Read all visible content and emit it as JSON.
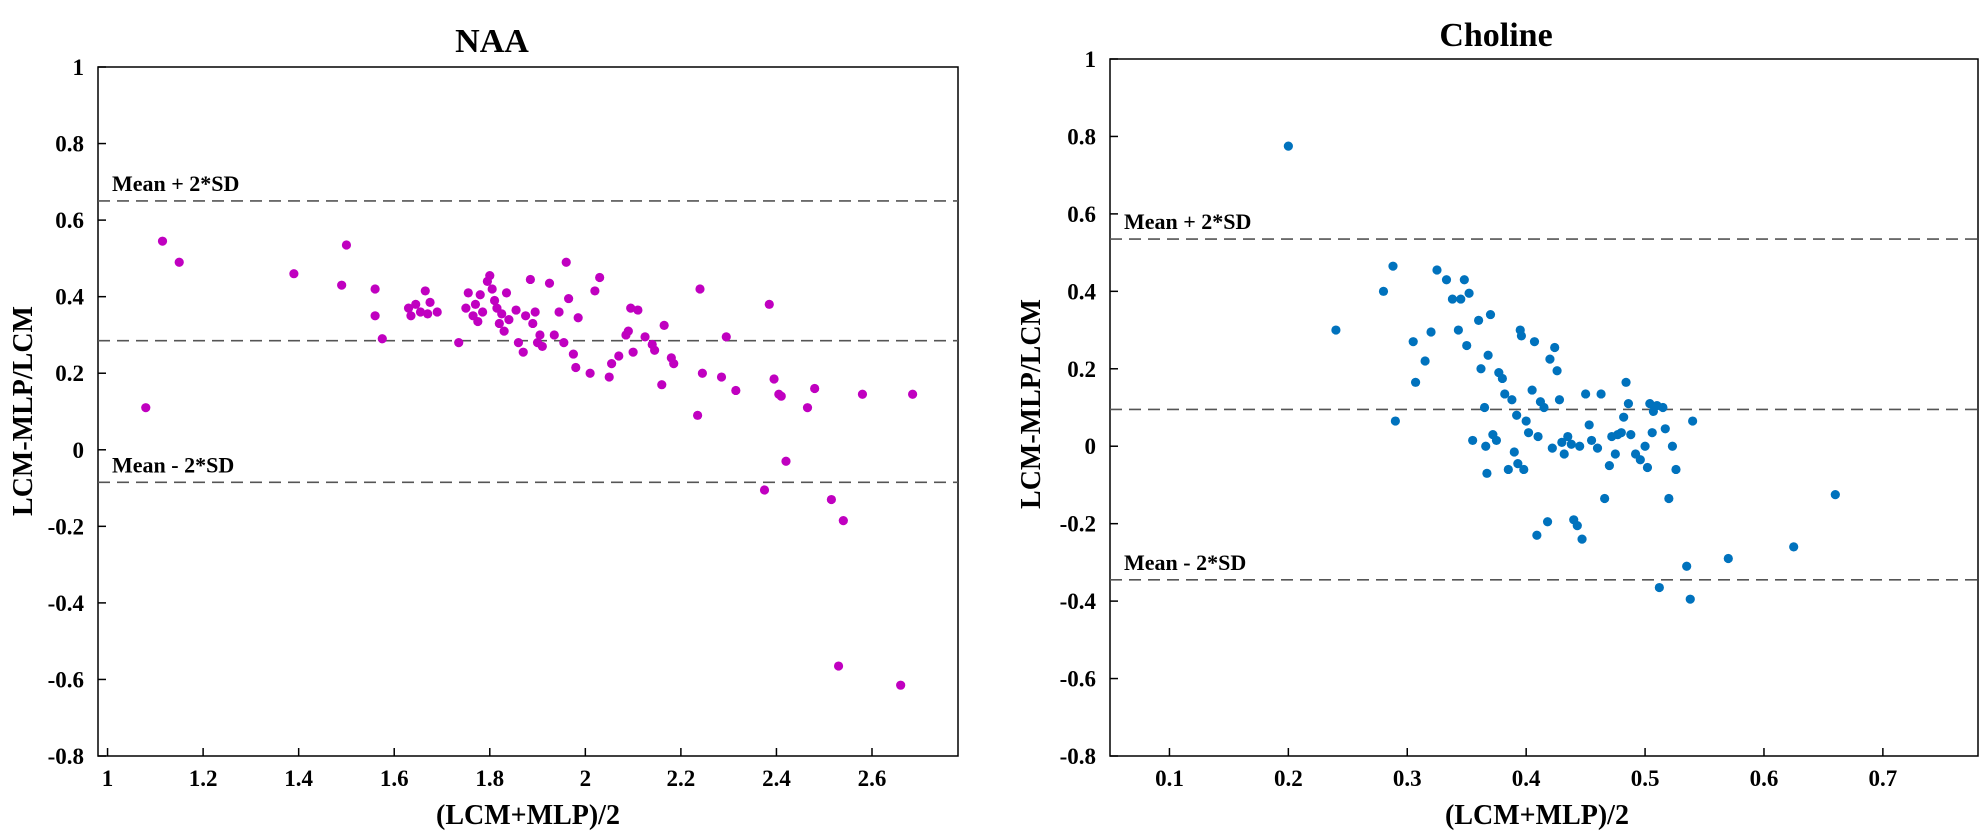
{
  "chart_data": [
    {
      "type": "scatter",
      "title": "NAA",
      "xlabel": "(LCM+MLP)/2",
      "ylabel": "LCM-MLP/LCM",
      "xlim": [
        0.98,
        2.78
      ],
      "ylim": [
        -0.8,
        1
      ],
      "xticks": [
        1,
        1.2,
        1.4,
        1.6,
        1.8,
        2,
        2.2,
        2.4,
        2.6
      ],
      "xtick_labels": [
        "1",
        "1.2",
        "1.4",
        "1.6",
        "1.8",
        "2",
        "2.2",
        "2.4",
        "2.6"
      ],
      "yticks": [
        -0.8,
        -0.6,
        -0.4,
        -0.2,
        0,
        0.2,
        0.4,
        0.6,
        0.8,
        1
      ],
      "ytick_labels": [
        "-0.8",
        "-0.6",
        "-0.4",
        "-0.2",
        "0",
        "0.2",
        "0.4",
        "0.6",
        "0.8",
        "1"
      ],
      "grid": false,
      "marker_color": "#c000c0",
      "reference_lines": [
        {
          "label": "Mean + 2*SD",
          "y": 0.65
        },
        {
          "label": "",
          "y": 0.285
        },
        {
          "label": "Mean - 2*SD",
          "y": -0.085
        }
      ],
      "points": [
        [
          1.08,
          0.11
        ],
        [
          1.115,
          0.545
        ],
        [
          1.15,
          0.49
        ],
        [
          1.39,
          0.46
        ],
        [
          1.49,
          0.43
        ],
        [
          1.5,
          0.535
        ],
        [
          1.56,
          0.42
        ],
        [
          1.56,
          0.35
        ],
        [
          1.575,
          0.29
        ],
        [
          1.63,
          0.37
        ],
        [
          1.635,
          0.35
        ],
        [
          1.645,
          0.38
        ],
        [
          1.655,
          0.36
        ],
        [
          1.665,
          0.415
        ],
        [
          1.67,
          0.355
        ],
        [
          1.675,
          0.385
        ],
        [
          1.69,
          0.36
        ],
        [
          1.735,
          0.28
        ],
        [
          1.75,
          0.37
        ],
        [
          1.755,
          0.41
        ],
        [
          1.765,
          0.35
        ],
        [
          1.77,
          0.38
        ],
        [
          1.775,
          0.335
        ],
        [
          1.78,
          0.405
        ],
        [
          1.785,
          0.36
        ],
        [
          1.795,
          0.44
        ],
        [
          1.8,
          0.455
        ],
        [
          1.805,
          0.42
        ],
        [
          1.81,
          0.39
        ],
        [
          1.815,
          0.37
        ],
        [
          1.82,
          0.33
        ],
        [
          1.825,
          0.355
        ],
        [
          1.83,
          0.31
        ],
        [
          1.835,
          0.41
        ],
        [
          1.84,
          0.34
        ],
        [
          1.855,
          0.365
        ],
        [
          1.86,
          0.28
        ],
        [
          1.87,
          0.255
        ],
        [
          1.875,
          0.35
        ],
        [
          1.885,
          0.445
        ],
        [
          1.89,
          0.33
        ],
        [
          1.895,
          0.36
        ],
        [
          1.9,
          0.28
        ],
        [
          1.905,
          0.3
        ],
        [
          1.91,
          0.27
        ],
        [
          1.925,
          0.435
        ],
        [
          1.935,
          0.3
        ],
        [
          1.945,
          0.36
        ],
        [
          1.955,
          0.28
        ],
        [
          1.96,
          0.49
        ],
        [
          1.965,
          0.395
        ],
        [
          1.975,
          0.25
        ],
        [
          1.98,
          0.215
        ],
        [
          1.985,
          0.345
        ],
        [
          2.01,
          0.2
        ],
        [
          2.02,
          0.415
        ],
        [
          2.03,
          0.45
        ],
        [
          2.05,
          0.19
        ],
        [
          2.055,
          0.225
        ],
        [
          2.07,
          0.245
        ],
        [
          2.085,
          0.3
        ],
        [
          2.09,
          0.31
        ],
        [
          2.095,
          0.37
        ],
        [
          2.1,
          0.255
        ],
        [
          2.11,
          0.365
        ],
        [
          2.125,
          0.295
        ],
        [
          2.14,
          0.275
        ],
        [
          2.145,
          0.26
        ],
        [
          2.16,
          0.17
        ],
        [
          2.165,
          0.325
        ],
        [
          2.18,
          0.24
        ],
        [
          2.185,
          0.225
        ],
        [
          2.235,
          0.09
        ],
        [
          2.24,
          0.42
        ],
        [
          2.245,
          0.2
        ],
        [
          2.285,
          0.19
        ],
        [
          2.295,
          0.295
        ],
        [
          2.315,
          0.155
        ],
        [
          2.375,
          -0.105
        ],
        [
          2.385,
          0.38
        ],
        [
          2.395,
          0.185
        ],
        [
          2.405,
          0.145
        ],
        [
          2.41,
          0.14
        ],
        [
          2.42,
          -0.03
        ],
        [
          2.465,
          0.11
        ],
        [
          2.48,
          0.16
        ],
        [
          2.515,
          -0.13
        ],
        [
          2.53,
          -0.565
        ],
        [
          2.54,
          -0.185
        ],
        [
          2.58,
          0.145
        ],
        [
          2.66,
          -0.615
        ],
        [
          2.685,
          0.145
        ]
      ]
    },
    {
      "type": "scatter",
      "title": "Choline",
      "xlabel": "(LCM+MLP)/2",
      "ylabel": "LCM-MLP/LCM",
      "xlim": [
        0.05,
        0.78
      ],
      "ylim": [
        -0.8,
        1
      ],
      "xticks": [
        0.1,
        0.2,
        0.3,
        0.4,
        0.5,
        0.6,
        0.7
      ],
      "xtick_labels": [
        "0.1",
        "0.2",
        "0.3",
        "0.4",
        "0.5",
        "0.6",
        "0.7"
      ],
      "yticks": [
        -0.8,
        -0.6,
        -0.4,
        -0.2,
        0,
        0.2,
        0.4,
        0.6,
        0.8,
        1
      ],
      "ytick_labels": [
        "-0.8",
        "-0.6",
        "-0.4",
        "-0.2",
        "0",
        "0.2",
        "0.4",
        "0.6",
        "0.8",
        "1"
      ],
      "grid": false,
      "marker_color": "#0072bd",
      "reference_lines": [
        {
          "label": "Mean + 2*SD",
          "y": 0.535
        },
        {
          "label": "",
          "y": 0.095
        },
        {
          "label": "Mean - 2*SD",
          "y": -0.345
        }
      ],
      "points": [
        [
          0.2,
          0.775
        ],
        [
          0.24,
          0.3
        ],
        [
          0.28,
          0.4
        ],
        [
          0.288,
          0.465
        ],
        [
          0.29,
          0.065
        ],
        [
          0.305,
          0.27
        ],
        [
          0.307,
          0.165
        ],
        [
          0.315,
          0.22
        ],
        [
          0.32,
          0.295
        ],
        [
          0.325,
          0.455
        ],
        [
          0.333,
          0.43
        ],
        [
          0.338,
          0.38
        ],
        [
          0.343,
          0.3
        ],
        [
          0.345,
          0.38
        ],
        [
          0.348,
          0.43
        ],
        [
          0.35,
          0.26
        ],
        [
          0.352,
          0.395
        ],
        [
          0.355,
          0.015
        ],
        [
          0.36,
          0.325
        ],
        [
          0.362,
          0.2
        ],
        [
          0.365,
          0.1
        ],
        [
          0.366,
          0.0
        ],
        [
          0.367,
          -0.07
        ],
        [
          0.368,
          0.235
        ],
        [
          0.37,
          0.34
        ],
        [
          0.372,
          0.03
        ],
        [
          0.375,
          0.015
        ],
        [
          0.377,
          0.19
        ],
        [
          0.38,
          0.175
        ],
        [
          0.382,
          0.135
        ],
        [
          0.385,
          -0.06
        ],
        [
          0.388,
          0.12
        ],
        [
          0.39,
          -0.015
        ],
        [
          0.392,
          0.08
        ],
        [
          0.393,
          -0.045
        ],
        [
          0.395,
          0.3
        ],
        [
          0.396,
          0.285
        ],
        [
          0.398,
          -0.06
        ],
        [
          0.4,
          0.065
        ],
        [
          0.402,
          0.035
        ],
        [
          0.405,
          0.145
        ],
        [
          0.407,
          0.27
        ],
        [
          0.409,
          -0.23
        ],
        [
          0.41,
          0.025
        ],
        [
          0.412,
          0.115
        ],
        [
          0.415,
          0.1
        ],
        [
          0.418,
          -0.195
        ],
        [
          0.42,
          0.225
        ],
        [
          0.422,
          -0.005
        ],
        [
          0.424,
          0.255
        ],
        [
          0.426,
          0.195
        ],
        [
          0.428,
          0.12
        ],
        [
          0.43,
          0.01
        ],
        [
          0.432,
          -0.02
        ],
        [
          0.435,
          0.025
        ],
        [
          0.438,
          0.005
        ],
        [
          0.44,
          -0.19
        ],
        [
          0.443,
          -0.205
        ],
        [
          0.445,
          0.0
        ],
        [
          0.447,
          -0.24
        ],
        [
          0.45,
          0.135
        ],
        [
          0.453,
          0.055
        ],
        [
          0.455,
          0.015
        ],
        [
          0.46,
          -0.005
        ],
        [
          0.463,
          0.135
        ],
        [
          0.466,
          -0.135
        ],
        [
          0.47,
          -0.05
        ],
        [
          0.472,
          0.025
        ],
        [
          0.475,
          -0.02
        ],
        [
          0.477,
          0.03
        ],
        [
          0.48,
          0.035
        ],
        [
          0.482,
          0.075
        ],
        [
          0.484,
          0.165
        ],
        [
          0.486,
          0.11
        ],
        [
          0.488,
          0.03
        ],
        [
          0.492,
          -0.02
        ],
        [
          0.496,
          -0.035
        ],
        [
          0.5,
          0.0
        ],
        [
          0.502,
          -0.055
        ],
        [
          0.504,
          0.11
        ],
        [
          0.506,
          0.035
        ],
        [
          0.507,
          0.09
        ],
        [
          0.51,
          0.105
        ],
        [
          0.512,
          -0.365
        ],
        [
          0.515,
          0.1
        ],
        [
          0.517,
          0.045
        ],
        [
          0.52,
          -0.135
        ],
        [
          0.523,
          0.0
        ],
        [
          0.526,
          -0.06
        ],
        [
          0.535,
          -0.31
        ],
        [
          0.538,
          -0.395
        ],
        [
          0.54,
          0.065
        ],
        [
          0.57,
          -0.29
        ],
        [
          0.625,
          -0.26
        ],
        [
          0.66,
          -0.125
        ]
      ]
    }
  ]
}
